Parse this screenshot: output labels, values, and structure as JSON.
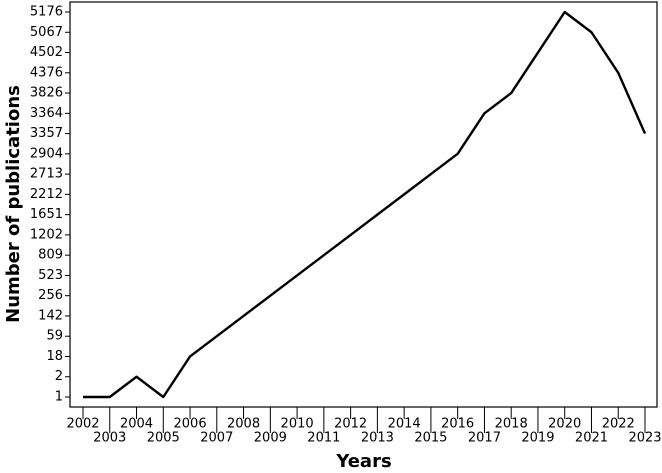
{
  "chart_data": {
    "type": "line",
    "xlabel": "Years",
    "ylabel": "Number of publications",
    "x": [
      2002,
      2003,
      2004,
      2005,
      2006,
      2007,
      2008,
      2009,
      2010,
      2011,
      2012,
      2013,
      2014,
      2015,
      2016,
      2017,
      2018,
      2019,
      2020,
      2021,
      2022,
      2023
    ],
    "series": [
      {
        "name": "Publications",
        "color": "#000000",
        "values": [
          1,
          1,
          2,
          1,
          18,
          59,
          142,
          256,
          523,
          809,
          1202,
          1651,
          2212,
          2713,
          2904,
          3364,
          3826,
          4502,
          5176,
          5067,
          4376,
          3357
        ]
      }
    ],
    "xticks": [
      2002,
      2003,
      2004,
      2005,
      2006,
      2007,
      2008,
      2009,
      2010,
      2011,
      2012,
      2013,
      2014,
      2015,
      2016,
      2017,
      2018,
      2019,
      2020,
      2021,
      2022,
      2023
    ],
    "yscale": "ordinal",
    "yticks": [
      1,
      2,
      18,
      59,
      142,
      256,
      523,
      809,
      1202,
      1651,
      2212,
      2713,
      2904,
      3357,
      3364,
      3826,
      4376,
      4502,
      5067,
      5176
    ]
  }
}
